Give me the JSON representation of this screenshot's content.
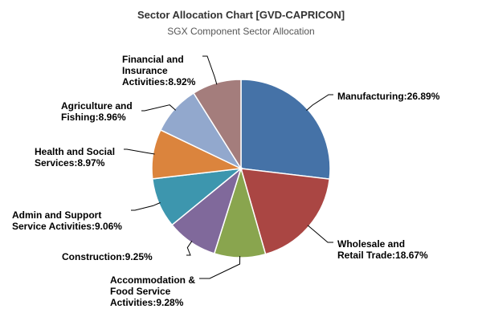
{
  "chart_data": {
    "type": "pie",
    "title": "Sector Allocation Chart [GVD-CAPRICON]",
    "subtitle": "SGX Component Sector Allocation",
    "legend": "none",
    "slices": [
      {
        "label": "Manufacturing",
        "value": 26.89,
        "color": "#4572A7",
        "display": [
          "Manufacturing:26.89%"
        ]
      },
      {
        "label": "Wholesale and Retail Trade",
        "value": 18.67,
        "color": "#AA4643",
        "display": [
          "Wholesale and",
          "Retail Trade:18.67%"
        ]
      },
      {
        "label": "Accommodation & Food Service Activities",
        "value": 9.28,
        "color": "#89A54E",
        "display": [
          "Accommodation &",
          "Food Service",
          "Activities:9.28%"
        ]
      },
      {
        "label": "Construction",
        "value": 9.25,
        "color": "#80699B",
        "display": [
          "Construction:9.25%"
        ]
      },
      {
        "label": "Admin and Support Service Activities",
        "value": 9.06,
        "color": "#3D96AE",
        "display": [
          "Admin and Support",
          "Service Activities:9.06%"
        ]
      },
      {
        "label": "Health and Social Services",
        "value": 8.97,
        "color": "#DB843D",
        "display": [
          "Health and Social",
          "Services:8.97%"
        ]
      },
      {
        "label": "Agriculture and Fishing",
        "value": 8.96,
        "color": "#92A8CD",
        "display": [
          "Agriculture and",
          "Fishing:8.96%"
        ]
      },
      {
        "label": "Financial and Insurance Activities",
        "value": 8.92,
        "color": "#A47D7C",
        "display": [
          "Financial and",
          "Insurance",
          "Activities:8.92%"
        ]
      }
    ]
  }
}
